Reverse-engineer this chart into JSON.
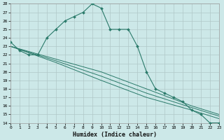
{
  "xlabel": "Humidex (Indice chaleur)",
  "background_color": "#cce8e8",
  "grid_color": "#b0c8c8",
  "line_color": "#2a7a6a",
  "xmin": 0,
  "xmax": 23,
  "ymin": 14,
  "ymax": 28,
  "curve_x": [
    0,
    1,
    2,
    3,
    4,
    5,
    6,
    7,
    8,
    9,
    10,
    11,
    12,
    13,
    14,
    15,
    16,
    17,
    18,
    19,
    20,
    21,
    22,
    23
  ],
  "curve_y": [
    23.5,
    22.5,
    22.0,
    22.0,
    24.0,
    25.0,
    26.0,
    26.5,
    27.0,
    28.0,
    27.5,
    25.0,
    25.0,
    25.0,
    23.0,
    20.0,
    18.0,
    17.5,
    17.0,
    16.5,
    15.5,
    15.0,
    14.0,
    14.0
  ],
  "line1_x": [
    0,
    5,
    10,
    15,
    20,
    23
  ],
  "line1_y": [
    23.0,
    21.5,
    20.0,
    18.0,
    16.0,
    15.0
  ],
  "line2_x": [
    0,
    5,
    10,
    15,
    20,
    23
  ],
  "line2_y": [
    23.0,
    21.3,
    19.5,
    17.5,
    15.8,
    14.8
  ],
  "line3_x": [
    0,
    5,
    10,
    15,
    20,
    23
  ],
  "line3_y": [
    23.0,
    21.1,
    19.0,
    17.0,
    15.5,
    14.5
  ]
}
